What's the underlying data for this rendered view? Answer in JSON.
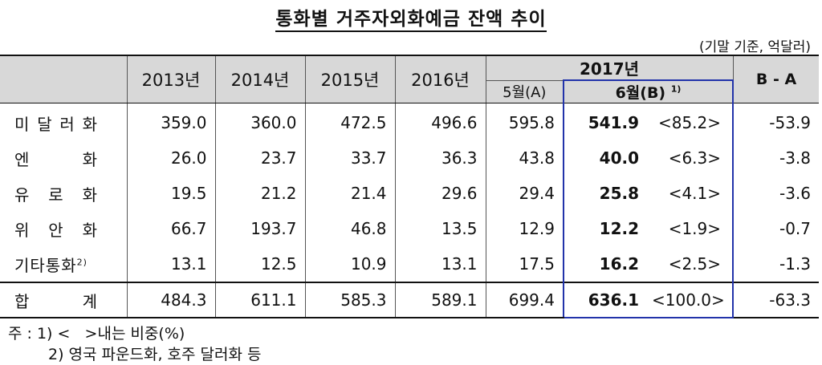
{
  "title": "통화별 거주자외화예금 잔액 추이",
  "unit": "(기말 기준, 억달러)",
  "headers": {
    "years": [
      "2013년",
      "2014년",
      "2015년",
      "2016년"
    ],
    "year2017": "2017년",
    "may": "5월(A)",
    "june": "6월(B)",
    "june_sup": "1)",
    "ba": "B - A"
  },
  "rows": [
    {
      "label_chars": [
        "미",
        "달",
        "러",
        "화"
      ],
      "v2013": "359.0",
      "v2014": "360.0",
      "v2015": "472.5",
      "v2016": "496.6",
      "may": "595.8",
      "june": "541.9",
      "share": "<85.2>",
      "ba": "-53.9"
    },
    {
      "label_chars": [
        "엔",
        "화"
      ],
      "v2013": "26.0",
      "v2014": "23.7",
      "v2015": "33.7",
      "v2016": "36.3",
      "may": "43.8",
      "june": "40.0",
      "share": "<6.3>",
      "ba": "-3.8"
    },
    {
      "label_chars": [
        "유",
        "로",
        "화"
      ],
      "v2013": "19.5",
      "v2014": "21.2",
      "v2015": "21.4",
      "v2016": "29.6",
      "may": "29.4",
      "june": "25.8",
      "share": "<4.1>",
      "ba": "-3.6"
    },
    {
      "label_chars": [
        "위",
        "안",
        "화"
      ],
      "v2013": "66.7",
      "v2014": "193.7",
      "v2015": "46.8",
      "v2016": "13.5",
      "may": "12.9",
      "june": "12.2",
      "share": "<1.9>",
      "ba": "-0.7"
    },
    {
      "label": "기타통화",
      "label_sup": "2)",
      "v2013": "13.1",
      "v2014": "12.5",
      "v2015": "10.9",
      "v2016": "13.1",
      "may": "17.5",
      "june": "16.2",
      "share": "<2.5>",
      "ba": "-1.3"
    }
  ],
  "total": {
    "label_chars": [
      "합",
      "계"
    ],
    "v2013": "484.3",
    "v2014": "611.1",
    "v2015": "585.3",
    "v2016": "589.1",
    "may": "699.4",
    "june": "636.1",
    "share": "<100.0>",
    "ba": "-63.3"
  },
  "footnotes": {
    "note1": "주 : 1) <   >내는 비중(%)",
    "note2": "2) 영국 파운드화, 호주 달러화 등"
  },
  "colors": {
    "highlight_border": "#2233aa",
    "header_bg": "#d8d8d8"
  }
}
